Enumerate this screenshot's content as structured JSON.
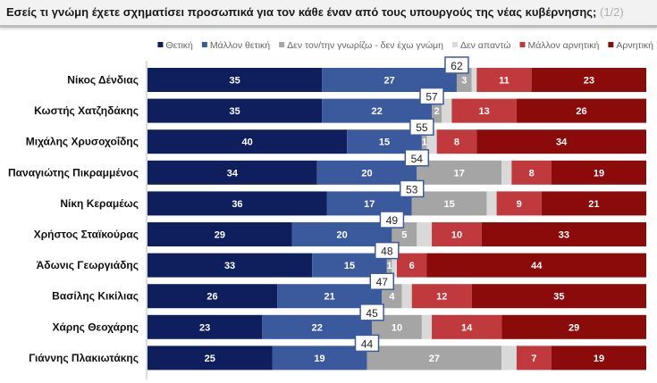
{
  "header": {
    "title": "Εσείς τι γνώμη έχετε σχηματίσει προσωπικά για τον κάθε έναν από τους υπουργούς της νέας κυβέρνησης;",
    "page": "(1/2)"
  },
  "chart_data": {
    "type": "bar",
    "orientation": "horizontal-stacked-100",
    "legend_position": "top",
    "categories": [
      "Νίκος Δένδιας",
      "Κωστής Χατζηδάκης",
      "Μιχάλης Χρυσοχοΐδης",
      "Παναγιώτης Πικραμμένος",
      "Νίκη Κεραμέως",
      "Χρήστος Σταϊκούρας",
      "Άδωνις Γεωργιάδης",
      "Βασίλης Κικίλιας",
      "Χάρης Θεοχάρης",
      "Γιάννης Πλακιωτάκης"
    ],
    "series": [
      {
        "name": "Θετική",
        "color": "#0f1f5e",
        "values": [
          35,
          35,
          40,
          34,
          36,
          29,
          33,
          26,
          23,
          25
        ],
        "labeled": true
      },
      {
        "name": "Μάλλον θετική",
        "color": "#3b5a9e",
        "values": [
          27,
          22,
          15,
          20,
          17,
          20,
          15,
          21,
          22,
          19
        ],
        "labeled": true
      },
      {
        "name": "Δεν τον/την γνωρίζω - δεν έχω γνώμη",
        "color": "#a5a5a5",
        "values": [
          3,
          2,
          1,
          17,
          15,
          5,
          1,
          4,
          10,
          27
        ],
        "labeled": true
      },
      {
        "name": "Δεν απαντώ",
        "color": "#d9d9d9",
        "values": [
          1,
          2,
          2,
          2,
          2,
          3,
          1,
          2,
          2,
          3
        ],
        "labeled": false
      },
      {
        "name": "Μάλλον αρνητική",
        "color": "#c0393d",
        "values": [
          11,
          13,
          8,
          8,
          9,
          10,
          6,
          12,
          14,
          7
        ],
        "labeled": true
      },
      {
        "name": "Αρνητική",
        "color": "#8b0a0a",
        "values": [
          23,
          26,
          34,
          19,
          21,
          33,
          44,
          35,
          29,
          19
        ],
        "labeled": true
      }
    ],
    "positive_totals": [
      62,
      57,
      55,
      54,
      53,
      49,
      48,
      47,
      45,
      44
    ],
    "xlim": [
      0,
      100
    ]
  }
}
